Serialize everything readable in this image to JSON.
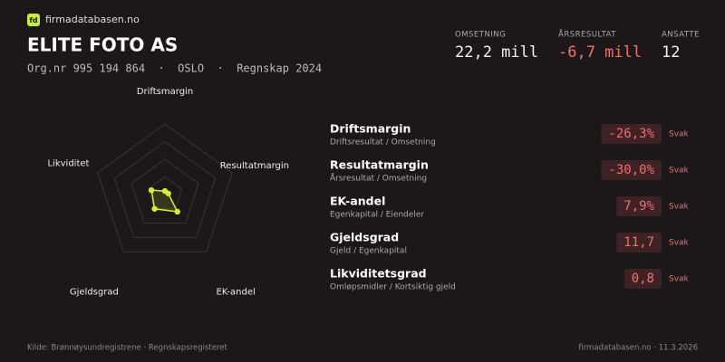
{
  "brand": "firmadatabasen.no",
  "logo": "fd",
  "title": "ELITE FOTO AS",
  "subtitle": "Org.nr 995 194 864  ·  OSLO  ·  Regnskap 2024",
  "kpis": [
    {
      "label": "OMSETNING",
      "value": "22,2 mill"
    },
    {
      "label": "ÅRSRESULTAT",
      "value": "-6,7 mill"
    },
    {
      "label": "ANSATTE",
      "value": "12"
    }
  ],
  "chart_data": {
    "type": "radar",
    "categories": [
      "Driftsmargin",
      "Resultatmargin",
      "EK-andel",
      "Gjeldsgrad",
      "Likviditet"
    ],
    "values": [
      0.05,
      0.05,
      0.3,
      0.25,
      0.2
    ],
    "ylim": [
      0,
      1
    ],
    "color": "#d4f02e"
  },
  "metrics": [
    {
      "name": "Driftsmargin",
      "formula": "Driftsresultat / Omsetning",
      "value": "-26,3%",
      "rating": "Svak"
    },
    {
      "name": "Resultatmargin",
      "formula": "Årsresultat / Omsetning",
      "value": "-30,0%",
      "rating": "Svak"
    },
    {
      "name": "EK-andel",
      "formula": "Egenkapital / Eiendeler",
      "value": "7,9%",
      "rating": "Svak"
    },
    {
      "name": "Gjeldsgrad",
      "formula": "Gjeld / Egenkapital",
      "value": "11,7",
      "rating": "Svak"
    },
    {
      "name": "Likviditetsgrad",
      "formula": "Omløpsmidler / Kortsiktig gjeld",
      "value": "0,8",
      "rating": "Svak"
    }
  ],
  "footer": {
    "source": "Kilde: Brønnøysundregistrene · Regnskapsregisteret",
    "site": "firmadatabasen.no · 11.3.2026"
  }
}
